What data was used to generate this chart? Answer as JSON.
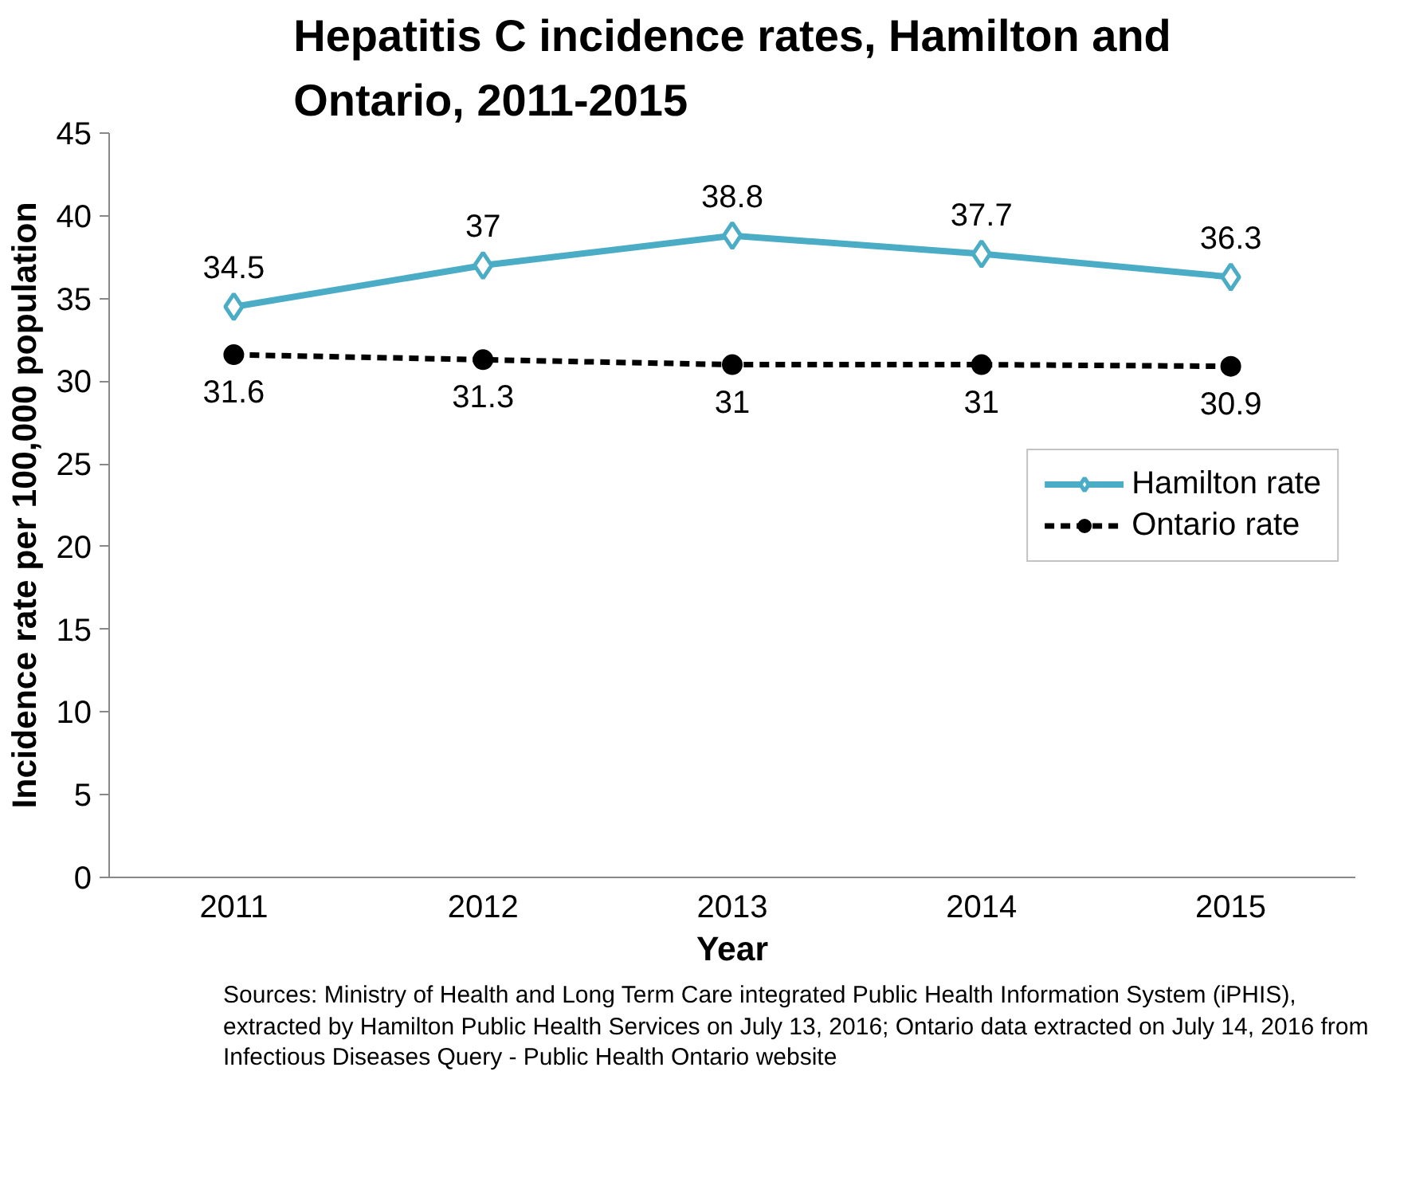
{
  "chart_data": {
    "type": "line",
    "title": "Hepatitis C incidence rates, Hamilton and Ontario, 2011-2015",
    "xlabel": "Year",
    "ylabel": "Incidence rate per 100,000 population",
    "categories": [
      "2011",
      "2012",
      "2013",
      "2014",
      "2015"
    ],
    "series": [
      {
        "name": "Hamilton rate",
        "color": "#4bacc6",
        "values": [
          34.5,
          37,
          38.8,
          37.7,
          36.3
        ],
        "marker": "diamond",
        "line_style": "solid"
      },
      {
        "name": "Ontario rate",
        "color": "#000000",
        "values": [
          31.6,
          31.3,
          31,
          31,
          30.9
        ],
        "marker": "circle",
        "line_style": "dashed"
      }
    ],
    "ylim": [
      0,
      45
    ],
    "yticks": [
      0,
      5,
      10,
      15,
      20,
      25,
      30,
      35,
      40,
      45
    ],
    "data_labels": true,
    "grid": false,
    "legend": "right",
    "annotations": [
      "Sources: Ministry of Health and Long Term Care integrated Public Health Information System (iPHIS), extracted by Hamilton Public Health Services on July 13, 2016;  Ontario data extracted on July 14, 2016 from Infectious Diseases Query - Public Health Ontario website"
    ]
  }
}
